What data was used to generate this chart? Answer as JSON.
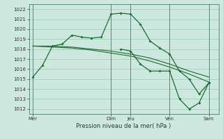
{
  "title": "",
  "xlabel": "Pression niveau de la mer( hPa )",
  "bg_color": "#cce8df",
  "grid_color": "#99ccbb",
  "line_color": "#1a6e2e",
  "ylim": [
    1011.5,
    1022.5
  ],
  "yticks": [
    1012,
    1013,
    1014,
    1015,
    1016,
    1017,
    1018,
    1019,
    1020,
    1021,
    1022
  ],
  "day_labels": [
    "Mer",
    "Dim",
    "Jeu",
    "Ven",
    "Sam"
  ],
  "day_positions": [
    0,
    4,
    5,
    7,
    9
  ],
  "xlim": [
    -0.2,
    9.5
  ],
  "series1": {
    "x": [
      0,
      0.5,
      1,
      1.5,
      2,
      2.5,
      3,
      3.5,
      4,
      4.5,
      5,
      5.5,
      6,
      6.5,
      7,
      7.5,
      8,
      8.5,
      9
    ],
    "y": [
      1015.2,
      1016.4,
      1018.3,
      1018.5,
      1019.4,
      1019.2,
      1019.1,
      1019.2,
      1021.5,
      1021.6,
      1021.5,
      1020.5,
      1018.8,
      1018.1,
      1017.5,
      1015.8,
      1015.0,
      1013.5,
      1014.6
    ]
  },
  "series2": {
    "x": [
      0,
      1,
      2,
      3,
      4,
      5,
      6,
      7,
      8,
      9
    ],
    "y": [
      1018.3,
      1018.3,
      1018.2,
      1018.0,
      1017.8,
      1017.5,
      1017.1,
      1016.5,
      1015.8,
      1015.2
    ]
  },
  "series3": {
    "x": [
      0,
      1,
      2,
      3,
      4,
      5,
      6,
      7,
      8,
      9
    ],
    "y": [
      1018.3,
      1018.2,
      1018.1,
      1017.9,
      1017.6,
      1017.3,
      1016.8,
      1016.2,
      1015.5,
      1014.7
    ]
  },
  "series4": {
    "x": [
      4.5,
      5,
      5.5,
      6,
      6.5,
      7,
      7.5,
      8,
      8.5,
      9
    ],
    "y": [
      1018.0,
      1017.8,
      1016.5,
      1015.8,
      1015.8,
      1015.8,
      1013.0,
      1012.0,
      1012.6,
      1014.6
    ]
  },
  "vline_positions": [
    0,
    4,
    5,
    7,
    9
  ],
  "ytick_fontsize": 5,
  "xtick_fontsize": 5,
  "xlabel_fontsize": 6
}
